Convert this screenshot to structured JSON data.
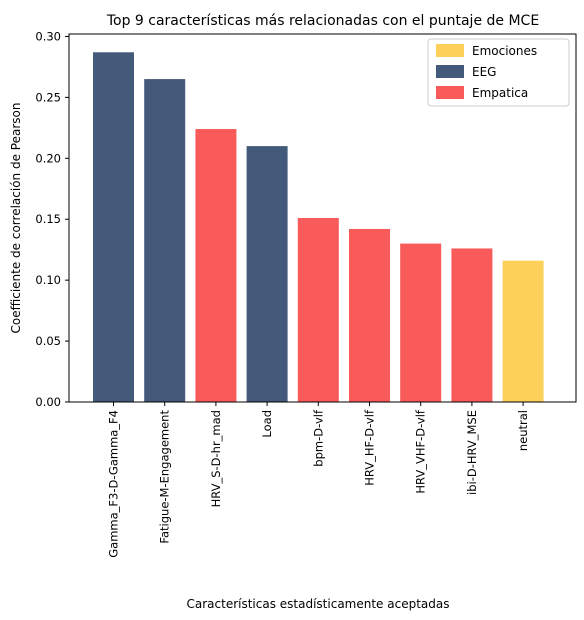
{
  "chart_data": {
    "type": "bar",
    "title": "Top 9 características más relacionadas con el puntaje de MCE",
    "xlabel": "Características estadísticamente aceptadas",
    "ylabel": "Coefficiente de correlación de Pearson",
    "ylim": [
      0,
      0.302
    ],
    "yticks": [
      "0.00",
      "0.05",
      "0.10",
      "0.15",
      "0.20",
      "0.25",
      "0.30"
    ],
    "grid": false,
    "legend_position": "top-right",
    "legend": [
      {
        "name": "Emociones",
        "color": "#fdd05a"
      },
      {
        "name": "EEG",
        "color": "#435a7a"
      },
      {
        "name": "Empatica",
        "color": "#f95a5a"
      }
    ],
    "categories": [
      "Gamma_F3-D-Gamma_F4",
      "Fatigue-M-Engagement",
      "HRV_S-D-hr_mad",
      "Load",
      "bpm-D-vlf",
      "HRV_HF-D-vlf",
      "HRV_VHF-D-vlf",
      "ibi-D-HRV_MSE",
      "neutral"
    ],
    "values": [
      0.287,
      0.265,
      0.224,
      0.21,
      0.151,
      0.142,
      0.13,
      0.126,
      0.116
    ],
    "groups": [
      "EEG",
      "EEG",
      "Empatica",
      "EEG",
      "Empatica",
      "Empatica",
      "Empatica",
      "Empatica",
      "Emociones"
    ]
  }
}
